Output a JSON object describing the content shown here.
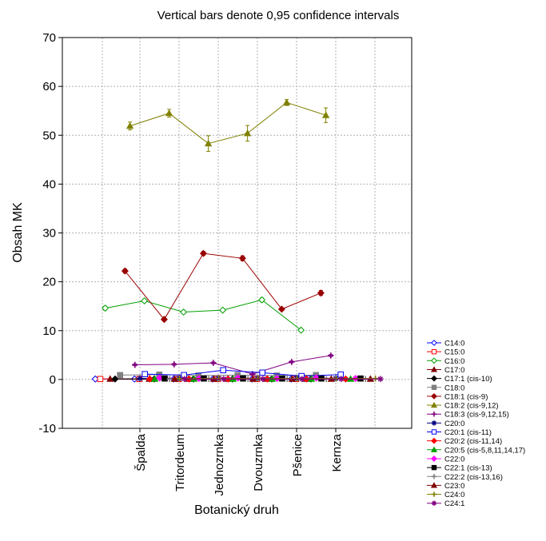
{
  "chart_data": {
    "type": "line",
    "title": "Vertical bars denote 0,95 confidence intervals",
    "xlabel": "Botanický druh",
    "ylabel": "Obsah MK",
    "ylim": [
      -10,
      70
    ],
    "yticks": [
      -10,
      0,
      10,
      20,
      30,
      40,
      50,
      60,
      70
    ],
    "grid": true,
    "legend_position": "bottom-right",
    "categories": [
      "Špalda",
      "Tritordeum",
      "Jednozrnka",
      "Dvouzrnka",
      "Pšenice",
      "Kernza"
    ],
    "series": [
      {
        "name": "C14:0",
        "color": "#0000ff",
        "marker": "diamond-open",
        "values": [
          0.1,
          0.1,
          0.1,
          0.1,
          0.1,
          0.1
        ]
      },
      {
        "name": "C15:0",
        "color": "#ff0000",
        "marker": "square-open",
        "values": [
          0.1,
          0.1,
          0.1,
          0.1,
          0.1,
          0.1
        ]
      },
      {
        "name": "C16:0",
        "color": "#00a000",
        "marker": "diamond-open",
        "values": [
          14.6,
          16.1,
          13.8,
          14.2,
          16.3,
          10.1
        ]
      },
      {
        "name": "C17:0",
        "color": "#800000",
        "marker": "triangle",
        "values": [
          0.1,
          0.1,
          0.1,
          0.1,
          0.1,
          0.1
        ]
      },
      {
        "name": "C17:1 (cis-10)",
        "color": "#000000",
        "marker": "diamond",
        "values": [
          0.1,
          0.1,
          0.1,
          0.1,
          0.1,
          0.1
        ]
      },
      {
        "name": "C18:0",
        "color": "#808080",
        "marker": "square",
        "values": [
          0.9,
          1.0,
          0.8,
          0.9,
          0.8,
          0.9
        ]
      },
      {
        "name": "C18:1 (cis-9)",
        "color": "#990000",
        "marker": "diamond",
        "values": [
          22.2,
          12.3,
          25.8,
          24.8,
          14.4,
          17.7
        ]
      },
      {
        "name": "C18:2 (cis-9,12)",
        "color": "#808000",
        "marker": "triangle",
        "values": [
          51.9,
          54.5,
          48.3,
          50.4,
          56.7,
          54.1
        ]
      },
      {
        "name": "C18:3 (cis-9,12,15)",
        "color": "#800080",
        "marker": "plus",
        "values": [
          3.0,
          3.1,
          3.4,
          1.1,
          3.6,
          4.9
        ]
      },
      {
        "name": "C20:0",
        "color": "#000080",
        "marker": "asterisk",
        "values": [
          0.2,
          0.2,
          0.2,
          0.2,
          0.2,
          0.2
        ]
      },
      {
        "name": "C20:1 (cis-11)",
        "color": "#0000ff",
        "marker": "square-open",
        "values": [
          1.1,
          0.9,
          1.9,
          1.4,
          0.7,
          1.0
        ]
      },
      {
        "name": "C20:2 (cis-11,14)",
        "color": "#ff0000",
        "marker": "diamond",
        "values": [
          0.1,
          0.1,
          0.1,
          0.1,
          0.1,
          0.1
        ]
      },
      {
        "name": "C20:5 (cis-5,8,11,14,17)",
        "color": "#00a000",
        "marker": "triangle",
        "values": [
          0.1,
          0.1,
          0.1,
          0.1,
          0.1,
          0.1
        ]
      },
      {
        "name": "C22:0",
        "color": "#ff00ff",
        "marker": "diamond",
        "values": [
          0.3,
          0.2,
          0.3,
          0.2,
          0.3,
          0.2
        ]
      },
      {
        "name": "C22:1 (cis-13)",
        "color": "#000000",
        "marker": "square",
        "values": [
          0.2,
          0.2,
          0.2,
          0.2,
          0.2,
          0.2
        ]
      },
      {
        "name": "C22:2 (cis-13,16)",
        "color": "#808080",
        "marker": "plus",
        "values": [
          0.1,
          0.1,
          0.1,
          0.1,
          0.1,
          0.1
        ]
      },
      {
        "name": "C23:0",
        "color": "#800000",
        "marker": "triangle",
        "values": [
          0.1,
          0.1,
          0.1,
          0.1,
          0.1,
          0.1
        ]
      },
      {
        "name": "C24:0",
        "color": "#808000",
        "marker": "plus",
        "values": [
          0.2,
          0.2,
          0.2,
          0.2,
          0.2,
          0.2
        ]
      },
      {
        "name": "C24:1",
        "color": "#800080",
        "marker": "asterisk",
        "values": [
          0.1,
          0.1,
          0.1,
          0.1,
          0.1,
          0.1
        ]
      }
    ],
    "error_bars": {
      "C16:0": [
        0.4,
        0.3,
        0.3,
        0.3,
        0.4,
        0.3
      ],
      "C18:1 (cis-9)": [
        0.4,
        0.3,
        0.4,
        0.5,
        0.3,
        0.5
      ],
      "C18:2 (cis-9,12)": [
        0.8,
        0.8,
        1.6,
        1.6,
        0.6,
        1.5
      ],
      "C18:3 (cis-9,12,15)": [
        0.2,
        0.2,
        0.2,
        0.2,
        0.2,
        0.2
      ]
    }
  }
}
